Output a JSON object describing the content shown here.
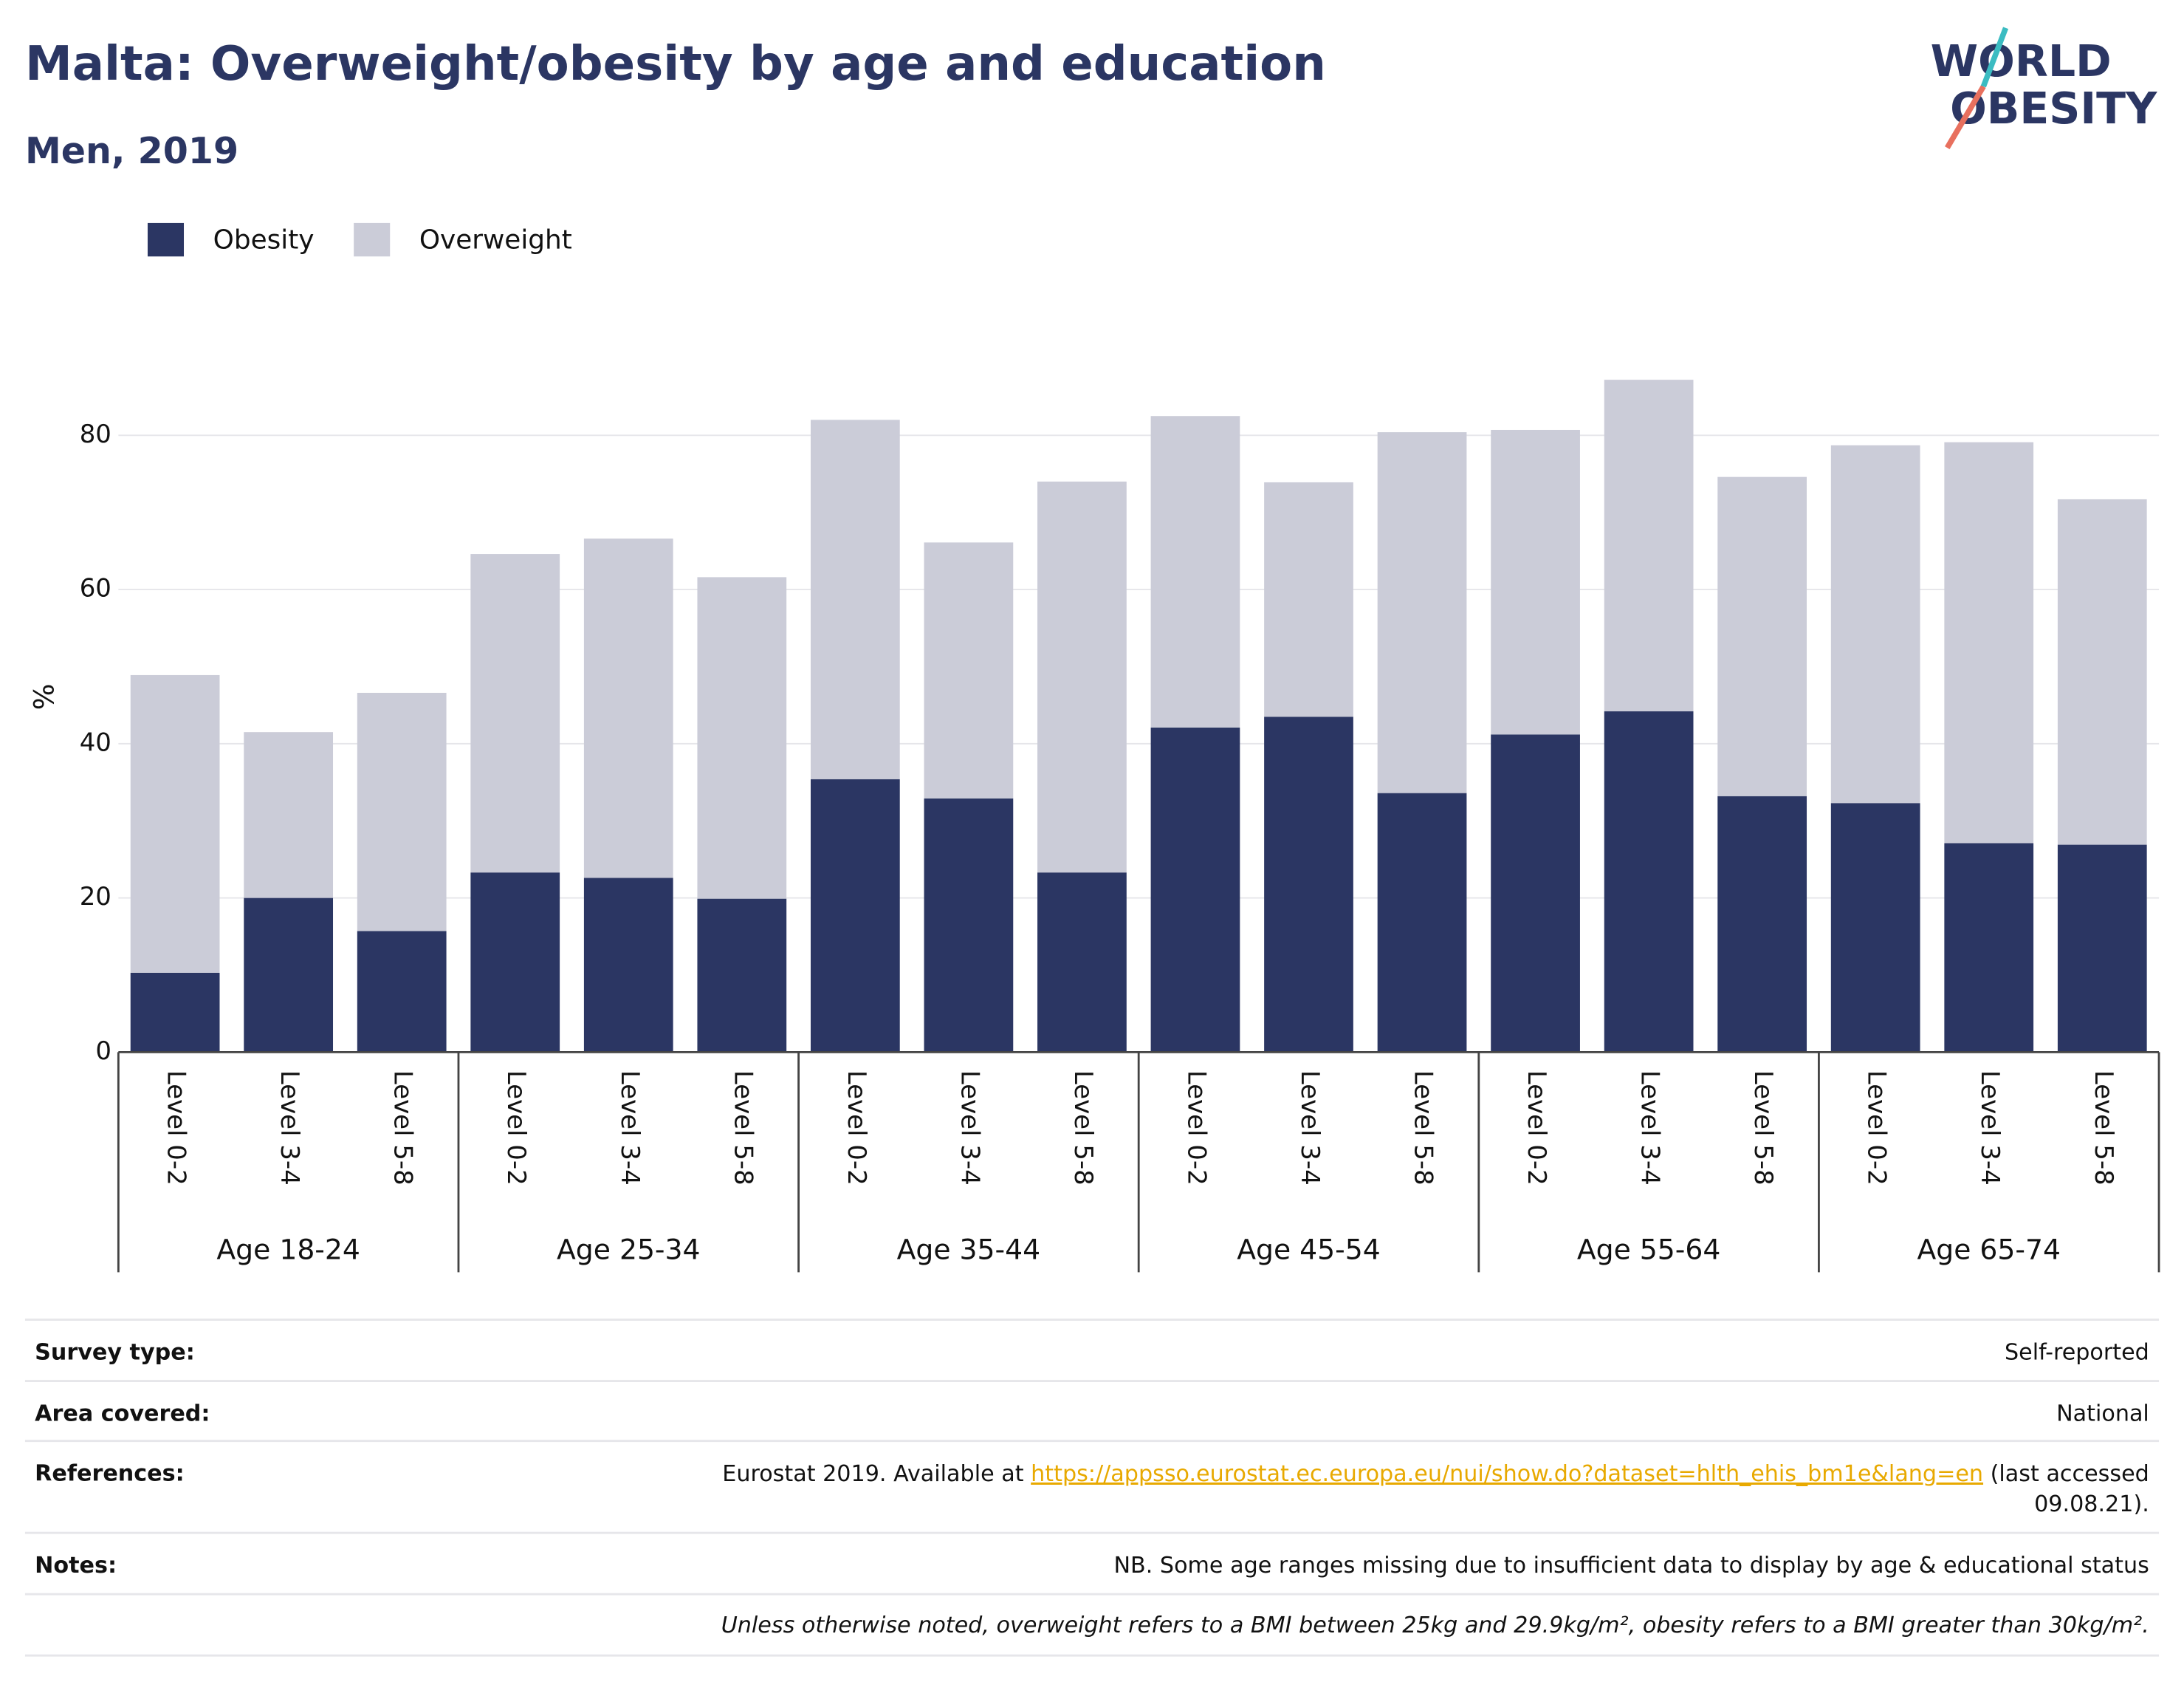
{
  "chart_data": {
    "type": "stacked_bar",
    "title": "Malta: Overweight/obesity by age and education",
    "subtitle": "Men, 2019",
    "y_label": "%",
    "categories": [
      "Level 0-2",
      "Level 3-4",
      "Level 5-8",
      "Level 0-2",
      "Level 3-4",
      "Level 5-8",
      "Level 0-2",
      "Level 3-4",
      "Level 5-8",
      "Level 0-2",
      "Level 3-4",
      "Level 5-8",
      "Level 0-2",
      "Level 3-4",
      "Level 5-8",
      "Level 0-2",
      "Level 3-4",
      "Level 5-8"
    ],
    "groups": [
      "Age 18-24",
      "Age 25-34",
      "Age 35-44",
      "Age 45-54",
      "Age 55-64",
      "Age 65-74"
    ],
    "series": [
      {
        "name": "Obesity",
        "color": "#2b3663",
        "values": [
          10.3,
          20.0,
          15.7,
          23.3,
          22.6,
          19.9,
          35.4,
          32.9,
          23.3,
          42.1,
          43.5,
          33.6,
          41.2,
          44.2,
          33.2,
          32.3,
          27.1,
          26.9
        ]
      },
      {
        "name": "Overweight",
        "color": "#cbccd8",
        "values": [
          38.6,
          21.5,
          30.9,
          41.3,
          44.0,
          41.7,
          46.6,
          33.2,
          50.7,
          40.4,
          30.4,
          46.8,
          39.5,
          43.0,
          41.4,
          46.4,
          52.0,
          44.8
        ]
      }
    ],
    "ylim": [
      0,
      90
    ],
    "yticks": [
      0,
      20,
      40,
      60,
      80
    ],
    "grid": true,
    "legend": "top-left"
  },
  "logo": [
    "WORLD",
    "OBESITY"
  ],
  "footer": {
    "rows": [
      {
        "label": "Survey type:",
        "value": "Self-reported"
      },
      {
        "label": "Area covered:",
        "value": "National"
      }
    ],
    "references": {
      "label": "References:",
      "prefix": "Eurostat 2019. Available at",
      "link": "https://appsso.eurostat.ec.europa.eu/nui/show.do?dataset=hlth_ehis_bm1e&lang=en",
      "suffix": [
        "(last accessed",
        "09.08.21)."
      ]
    },
    "notes": {
      "label": "Notes:",
      "value": "NB. Some age ranges missing due to insufficient data to display by age & educational status"
    },
    "definition": "Unless otherwise noted, overweight refers to a BMI between 25kg and 29.9kg/m², obesity refers to a BMI greater than 30kg/m²."
  }
}
